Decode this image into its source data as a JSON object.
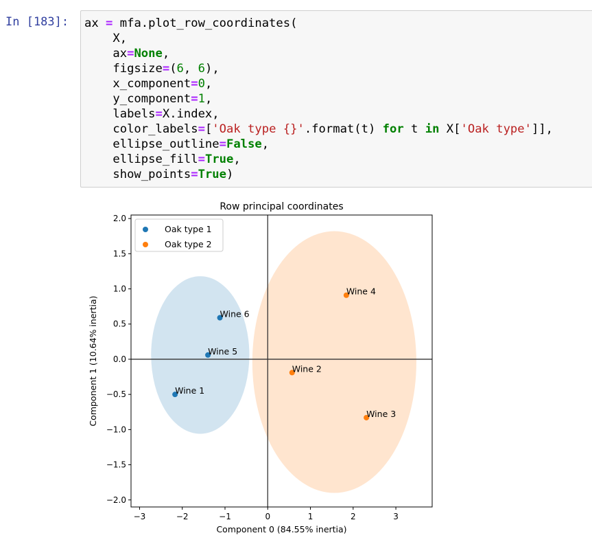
{
  "cell": {
    "prompt": "In [183]:",
    "code_lines": [
      [
        {
          "t": "plain",
          "v": "ax "
        },
        {
          "t": "op",
          "v": "="
        },
        {
          "t": "plain",
          "v": " mfa.plot_row_coordinates("
        }
      ],
      [
        {
          "t": "plain",
          "v": "    X,"
        }
      ],
      [
        {
          "t": "plain",
          "v": "    ax"
        },
        {
          "t": "op",
          "v": "="
        },
        {
          "t": "kw",
          "v": "None"
        },
        {
          "t": "plain",
          "v": ","
        }
      ],
      [
        {
          "t": "plain",
          "v": "    figsize"
        },
        {
          "t": "op",
          "v": "="
        },
        {
          "t": "plain",
          "v": "("
        },
        {
          "t": "num",
          "v": "6"
        },
        {
          "t": "plain",
          "v": ", "
        },
        {
          "t": "num",
          "v": "6"
        },
        {
          "t": "plain",
          "v": "),"
        }
      ],
      [
        {
          "t": "plain",
          "v": "    x_component"
        },
        {
          "t": "op",
          "v": "="
        },
        {
          "t": "num",
          "v": "0"
        },
        {
          "t": "plain",
          "v": ","
        }
      ],
      [
        {
          "t": "plain",
          "v": "    y_component"
        },
        {
          "t": "op",
          "v": "="
        },
        {
          "t": "num",
          "v": "1"
        },
        {
          "t": "plain",
          "v": ","
        }
      ],
      [
        {
          "t": "plain",
          "v": "    labels"
        },
        {
          "t": "op",
          "v": "="
        },
        {
          "t": "plain",
          "v": "X.index,"
        }
      ],
      [
        {
          "t": "plain",
          "v": "    color_labels"
        },
        {
          "t": "op",
          "v": "="
        },
        {
          "t": "plain",
          "v": "["
        },
        {
          "t": "str",
          "v": "'Oak type {}'"
        },
        {
          "t": "plain",
          "v": ".format(t) "
        },
        {
          "t": "kw",
          "v": "for"
        },
        {
          "t": "plain",
          "v": " t "
        },
        {
          "t": "kw",
          "v": "in"
        },
        {
          "t": "plain",
          "v": " X["
        },
        {
          "t": "str",
          "v": "'Oak type'"
        },
        {
          "t": "plain",
          "v": "]],"
        }
      ],
      [
        {
          "t": "plain",
          "v": "    ellipse_outline"
        },
        {
          "t": "op",
          "v": "="
        },
        {
          "t": "kw",
          "v": "False"
        },
        {
          "t": "plain",
          "v": ","
        }
      ],
      [
        {
          "t": "plain",
          "v": "    ellipse_fill"
        },
        {
          "t": "op",
          "v": "="
        },
        {
          "t": "kw",
          "v": "True"
        },
        {
          "t": "plain",
          "v": ","
        }
      ],
      [
        {
          "t": "plain",
          "v": "    show_points"
        },
        {
          "t": "op",
          "v": "="
        },
        {
          "t": "kw",
          "v": "True"
        },
        {
          "t": "plain",
          "v": ")"
        }
      ]
    ]
  },
  "chart_data": {
    "type": "scatter",
    "title": "Row principal coordinates",
    "xlabel": "Component 0 (84.55% inertia)",
    "ylabel": "Component 1 (10.64% inertia)",
    "xlim": [
      -3.2,
      3.85
    ],
    "ylim": [
      -2.1,
      2.05
    ],
    "xticks": [
      -3,
      -2,
      -1,
      0,
      1,
      2,
      3
    ],
    "yticks": [
      2.0,
      1.5,
      1.0,
      0.5,
      0.0,
      -0.5,
      -1.0,
      -1.5,
      -2.0
    ],
    "xtick_labels": [
      "−3",
      "−2",
      "−1",
      "0",
      "1",
      "2",
      "3"
    ],
    "ytick_labels": [
      "2.0",
      "1.5",
      "1.0",
      "0.5",
      "0.0",
      "−0.5",
      "−1.0",
      "−1.5",
      "−2.0"
    ],
    "grid": false,
    "zero_lines": true,
    "legend_position": "top-left",
    "series": [
      {
        "name": "Oak type 1",
        "color": "#1f77b4",
        "points": [
          {
            "label": "Wine 1",
            "x": -2.17,
            "y": -0.5
          },
          {
            "label": "Wine 5",
            "x": -1.4,
            "y": 0.06
          },
          {
            "label": "Wine 6",
            "x": -1.12,
            "y": 0.59
          }
        ],
        "ellipse": {
          "cx": -1.58,
          "cy": 0.06,
          "rx": 1.15,
          "ry": 1.12,
          "fill": "#1f77b4",
          "opacity": 0.2
        }
      },
      {
        "name": "Oak type 2",
        "color": "#ff7f0e",
        "points": [
          {
            "label": "Wine 2",
            "x": 0.57,
            "y": -0.19
          },
          {
            "label": "Wine 3",
            "x": 2.31,
            "y": -0.83
          },
          {
            "label": "Wine 4",
            "x": 1.84,
            "y": 0.91
          }
        ],
        "ellipse": {
          "cx": 1.56,
          "cy": -0.04,
          "rx": 1.92,
          "ry": 1.86,
          "fill": "#ff7f0e",
          "opacity": 0.2
        }
      }
    ]
  }
}
